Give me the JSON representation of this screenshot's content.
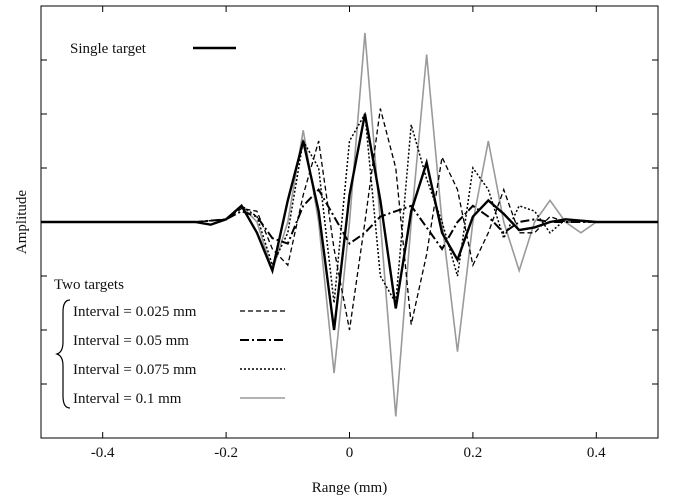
{
  "chart_data": {
    "type": "line",
    "xlabel": "Range (mm)",
    "ylabel": "Amplitude",
    "xlim": [
      -0.5,
      0.5
    ],
    "ylim": [
      -4,
      4
    ],
    "x_ticks": [
      -0.4,
      -0.2,
      0,
      0.2,
      0.4
    ],
    "x_tick_labels": [
      "-0.4",
      "-0.2",
      "0",
      "0.2",
      "0.4"
    ],
    "y_ticks": [
      -3,
      -2,
      -1,
      0,
      1,
      2,
      3
    ],
    "grid": false,
    "legend_groups": [
      {
        "title": "",
        "placement": "top-left",
        "entries": [
          0
        ]
      },
      {
        "title": "Two targets",
        "placement": "bottom-left",
        "entries": [
          1,
          2,
          3,
          4
        ]
      }
    ],
    "series": [
      {
        "name": "Single target",
        "style": "solid-bold",
        "color": "#000000",
        "x": [
          -0.5,
          -0.3,
          -0.25,
          -0.225,
          -0.2,
          -0.175,
          -0.15,
          -0.125,
          -0.1,
          -0.075,
          -0.05,
          -0.025,
          0,
          0.025,
          0.05,
          0.075,
          0.1,
          0.125,
          0.15,
          0.175,
          0.2,
          0.225,
          0.25,
          0.275,
          0.3,
          0.325,
          0.35,
          0.4,
          0.5
        ],
        "y": [
          0,
          0,
          0,
          -0.05,
          0.05,
          0.3,
          -0.2,
          -0.9,
          0.4,
          1.5,
          0.2,
          -2.0,
          0.5,
          2.0,
          0.4,
          -1.6,
          0.2,
          1.1,
          -0.2,
          -0.7,
          0.1,
          0.4,
          0.15,
          -0.15,
          -0.1,
          0.0,
          0.05,
          0,
          0
        ]
      },
      {
        "name": "Interval = 0.025 mm",
        "style": "dashed",
        "color": "#000000",
        "x": [
          -0.5,
          -0.3,
          -0.25,
          -0.2,
          -0.175,
          -0.15,
          -0.125,
          -0.1,
          -0.075,
          -0.05,
          -0.025,
          0,
          0.025,
          0.05,
          0.075,
          0.1,
          0.125,
          0.15,
          0.175,
          0.2,
          0.225,
          0.25,
          0.275,
          0.3,
          0.325,
          0.35,
          0.4,
          0.5
        ],
        "y": [
          0,
          0,
          0,
          0.05,
          0.25,
          0.2,
          -0.5,
          -0.8,
          0.5,
          1.5,
          -0.5,
          -2.0,
          0.0,
          2.1,
          1.0,
          -1.9,
          -0.6,
          1.2,
          0.6,
          -0.8,
          -0.2,
          0.6,
          -0.2,
          -0.2,
          0.1,
          0.0,
          0,
          0
        ]
      },
      {
        "name": "Interval = 0.05 mm",
        "style": "dash-dot",
        "color": "#000000",
        "x": [
          -0.5,
          -0.3,
          -0.25,
          -0.2,
          -0.175,
          -0.15,
          -0.125,
          -0.1,
          -0.075,
          -0.05,
          -0.025,
          0,
          0.025,
          0.05,
          0.075,
          0.1,
          0.125,
          0.15,
          0.175,
          0.2,
          0.225,
          0.25,
          0.275,
          0.3,
          0.325,
          0.35,
          0.4,
          0.5
        ],
        "y": [
          0,
          0,
          0,
          0.05,
          0.2,
          0.1,
          -0.3,
          -0.4,
          0.3,
          0.6,
          0.1,
          -0.4,
          -0.2,
          0.1,
          0.2,
          0.3,
          -0.1,
          -0.5,
          0.0,
          0.3,
          0.1,
          -0.2,
          0.0,
          0.05,
          0.0,
          0.0,
          0,
          0
        ]
      },
      {
        "name": "Interval = 0.075 mm",
        "style": "dotted",
        "color": "#000000",
        "x": [
          -0.5,
          -0.3,
          -0.25,
          -0.2,
          -0.175,
          -0.15,
          -0.125,
          -0.1,
          -0.075,
          -0.05,
          -0.025,
          0,
          0.025,
          0.05,
          0.075,
          0.1,
          0.125,
          0.15,
          0.175,
          0.2,
          0.225,
          0.25,
          0.275,
          0.3,
          0.325,
          0.35,
          0.4,
          0.5
        ],
        "y": [
          0,
          0,
          0,
          0.05,
          0.3,
          0.1,
          -0.8,
          -0.2,
          1.5,
          1.0,
          -1.5,
          1.5,
          2.0,
          -1.0,
          -1.5,
          1.8,
          0.8,
          0.0,
          -1.0,
          1.0,
          0.6,
          -0.3,
          0.3,
          0.2,
          -0.2,
          0.05,
          0,
          0
        ]
      },
      {
        "name": "Interval = 0.1 mm",
        "style": "solid-gray",
        "color": "#9a9a9a",
        "x": [
          -0.5,
          -0.3,
          -0.25,
          -0.2,
          -0.175,
          -0.15,
          -0.125,
          -0.1,
          -0.075,
          -0.05,
          -0.025,
          0,
          0.025,
          0.05,
          0.075,
          0.1,
          0.125,
          0.15,
          0.175,
          0.2,
          0.225,
          0.25,
          0.275,
          0.3,
          0.325,
          0.35,
          0.375,
          0.4,
          0.5
        ],
        "y": [
          0,
          0,
          0,
          0.05,
          0.3,
          0.0,
          -0.9,
          0.0,
          1.7,
          0.0,
          -2.8,
          0.0,
          3.5,
          0.0,
          -3.6,
          0.0,
          3.1,
          0.0,
          -2.4,
          0.0,
          1.5,
          0.0,
          -0.9,
          0.0,
          0.4,
          0.0,
          -0.2,
          0,
          0
        ]
      }
    ]
  }
}
